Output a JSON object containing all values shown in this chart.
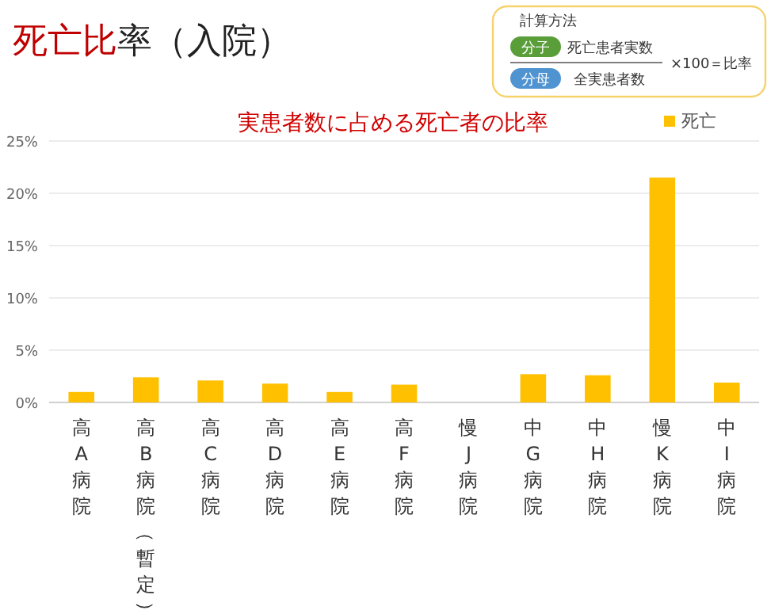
{
  "chart_data": {
    "type": "bar",
    "title": "死亡比率（入院）",
    "subtitle": "実患者数に占める死亡者の比率",
    "annotations": [
      "計算方法",
      "分子",
      "死亡患者実数",
      "分母",
      "全実患者数",
      "×100＝比率"
    ],
    "categories": [
      "高A病院",
      "高B病院（暫定）",
      "高C病院",
      "高D病院",
      "高E病院",
      "高F病院",
      "慢J病院",
      "中G病院",
      "中H病院",
      "慢K病院",
      "中I病院"
    ],
    "series": [
      {
        "name": "死亡",
        "color": "#ffc000",
        "values": [
          1.0,
          2.4,
          2.1,
          1.8,
          1.0,
          1.7,
          0,
          2.7,
          2.6,
          21.5,
          1.9
        ]
      }
    ],
    "ylim": [
      0,
      25
    ],
    "yticks": [
      {
        "value": 0,
        "label": "0%"
      },
      {
        "value": 5,
        "label": "5%"
      },
      {
        "value": 10,
        "label": "10%"
      },
      {
        "value": 15,
        "label": "15%"
      },
      {
        "value": 20,
        "label": "20%"
      },
      {
        "value": 25,
        "label": "25%"
      }
    ],
    "grid": "y",
    "legend": "top right"
  }
}
